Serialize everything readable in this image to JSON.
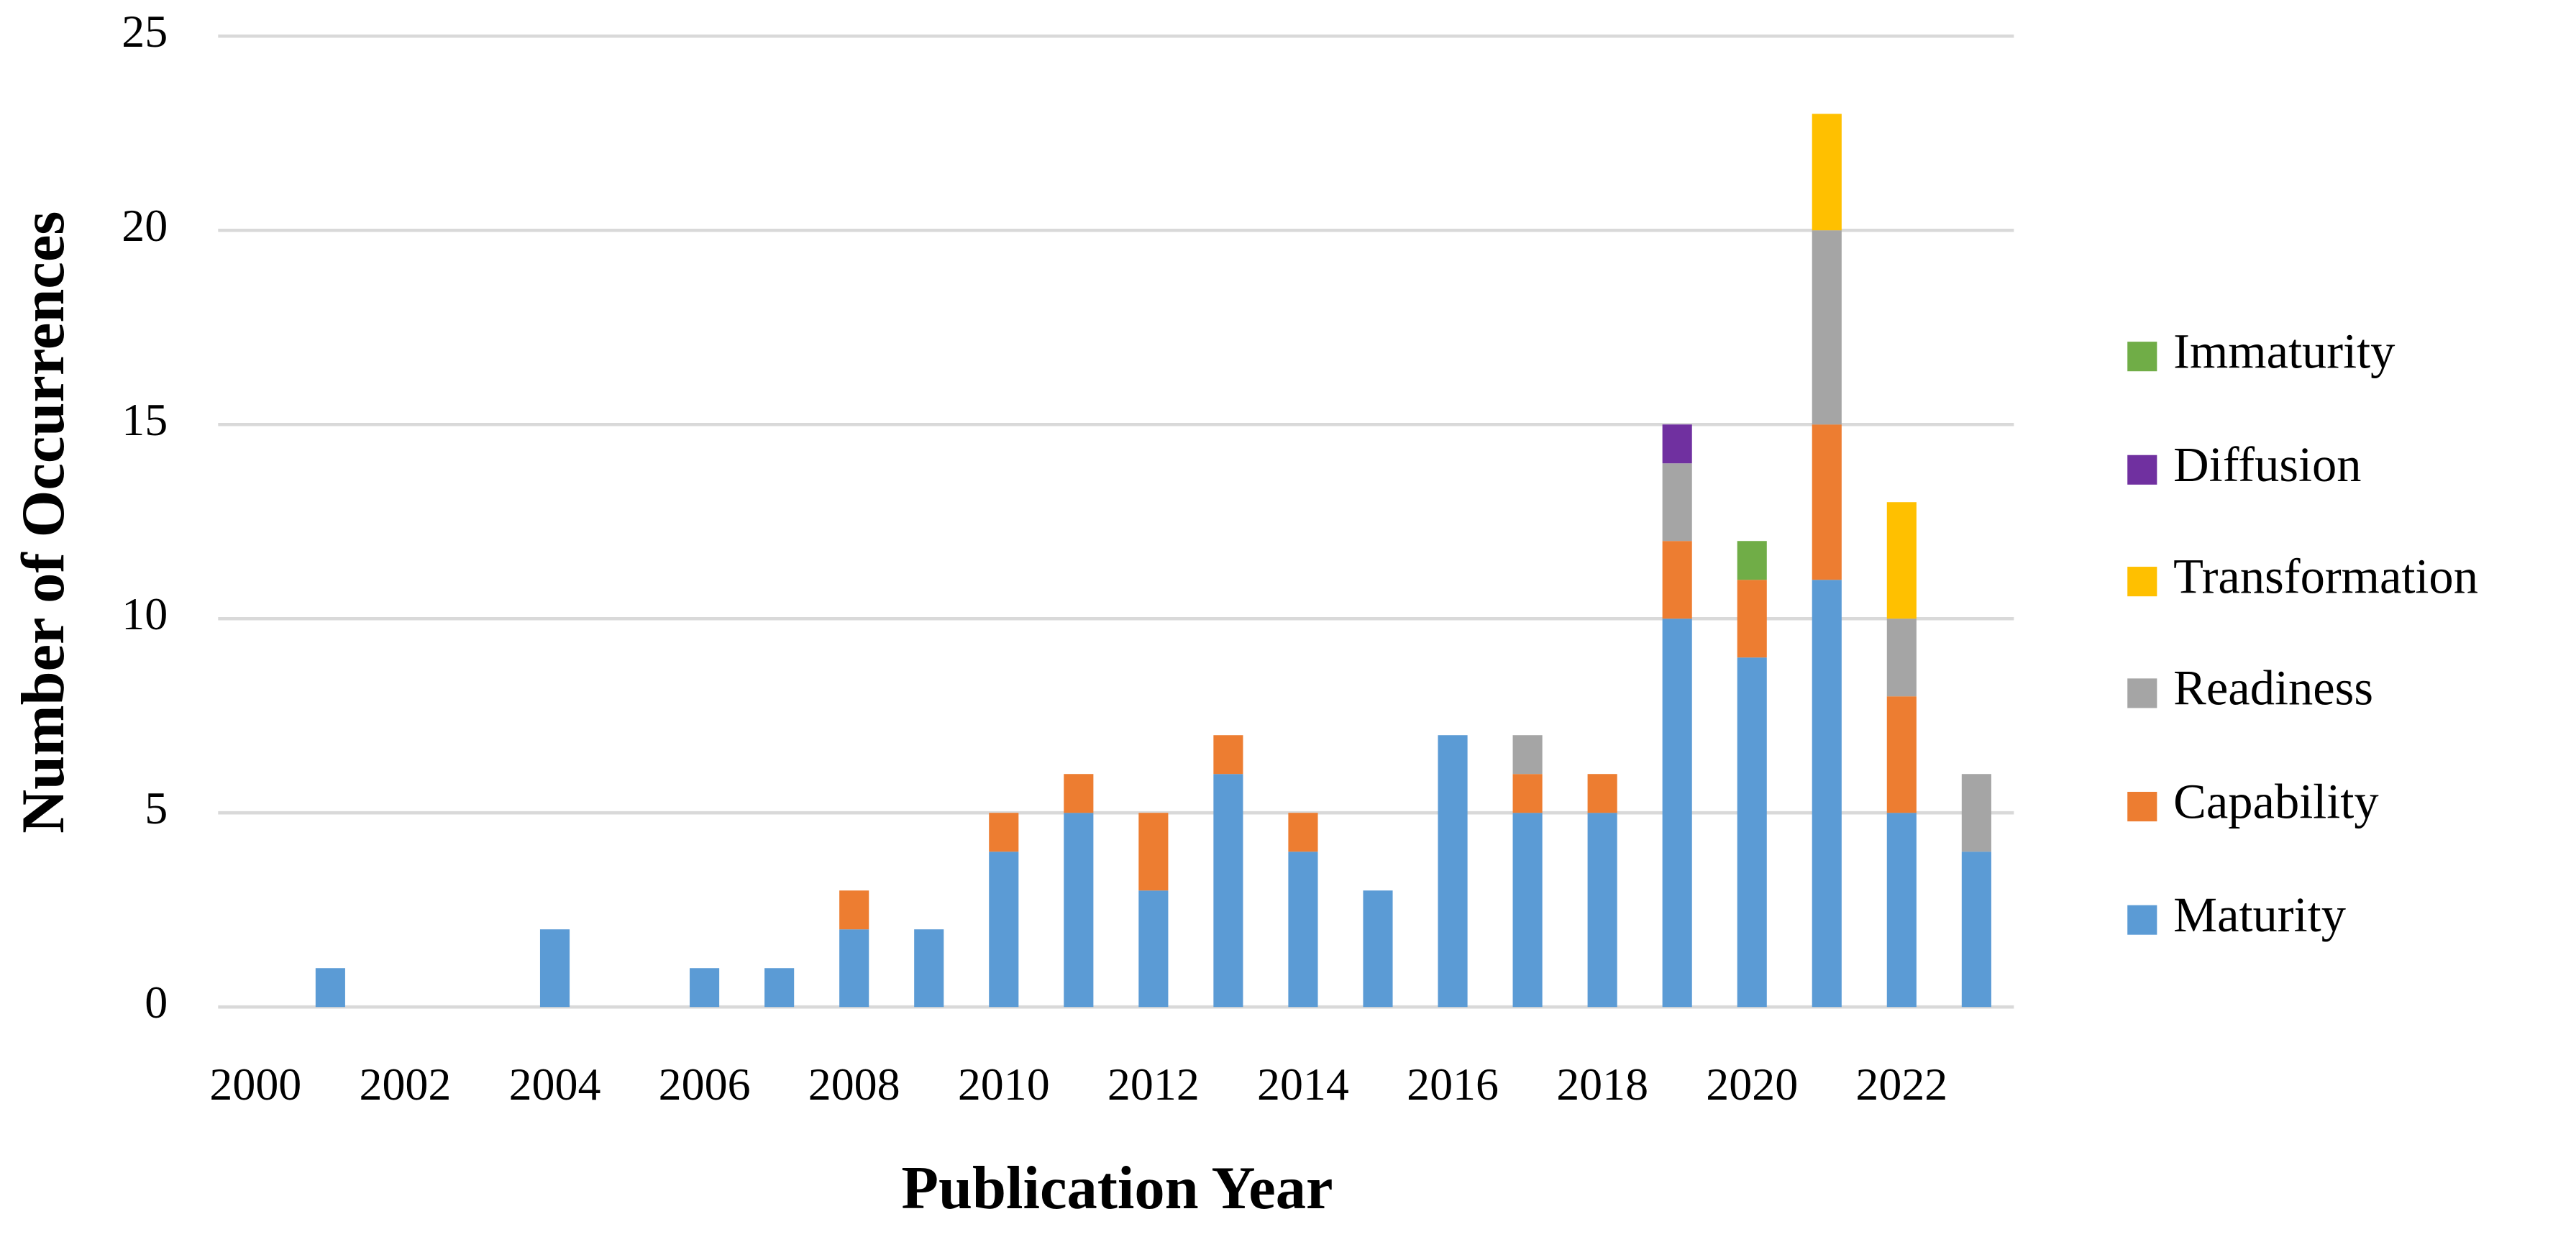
{
  "chart_data": {
    "type": "stacked-bar",
    "x_label": "Publication Year",
    "y_label": "Number of Occurrences",
    "categories": [
      "2000",
      null,
      "2002",
      null,
      "2004",
      null,
      "2006",
      null,
      "2008",
      null,
      "2010",
      null,
      "2012",
      null,
      "2014",
      null,
      "2016",
      null,
      "2018",
      null,
      "2020",
      null,
      "2022",
      null
    ],
    "series": [
      {
        "name": "Maturity",
        "color": "#5b9bd5",
        "values": [
          0,
          1,
          0,
          0,
          2,
          0,
          1,
          1,
          2,
          2,
          4,
          5,
          3,
          6,
          4,
          3,
          7,
          5,
          5,
          10,
          9,
          11,
          5,
          4
        ]
      },
      {
        "name": "Capability",
        "color": "#ed7d31",
        "values": [
          0,
          0,
          0,
          0,
          0,
          0,
          0,
          0,
          1,
          0,
          1,
          1,
          2,
          1,
          1,
          0,
          0,
          1,
          1,
          2,
          2,
          4,
          3,
          0
        ]
      },
      {
        "name": "Readiness",
        "color": "#a5a5a5",
        "values": [
          0,
          0,
          0,
          0,
          0,
          0,
          0,
          0,
          0,
          0,
          0,
          0,
          0,
          0,
          0,
          0,
          0,
          1,
          0,
          2,
          0,
          5,
          2,
          2
        ]
      },
      {
        "name": "Transformation",
        "color": "#ffc000",
        "values": [
          0,
          0,
          0,
          0,
          0,
          0,
          0,
          0,
          0,
          0,
          0,
          0,
          0,
          0,
          0,
          0,
          0,
          0,
          0,
          0,
          0,
          3,
          3,
          0
        ]
      },
      {
        "name": "Diffusion",
        "color": "#7030a0",
        "values": [
          0,
          0,
          0,
          0,
          0,
          0,
          0,
          0,
          0,
          0,
          0,
          0,
          0,
          0,
          0,
          0,
          0,
          0,
          0,
          1,
          0,
          0,
          0,
          0
        ]
      },
      {
        "name": "Immaturity",
        "color": "#70ad47",
        "values": [
          0,
          0,
          0,
          0,
          0,
          0,
          0,
          0,
          0,
          0,
          0,
          0,
          0,
          0,
          0,
          0,
          0,
          0,
          0,
          0,
          1,
          0,
          0,
          0
        ]
      }
    ],
    "ylim": [
      0,
      25
    ],
    "yticks": [
      0,
      5,
      10,
      15,
      20,
      25
    ],
    "grid": true,
    "legend": "right"
  }
}
